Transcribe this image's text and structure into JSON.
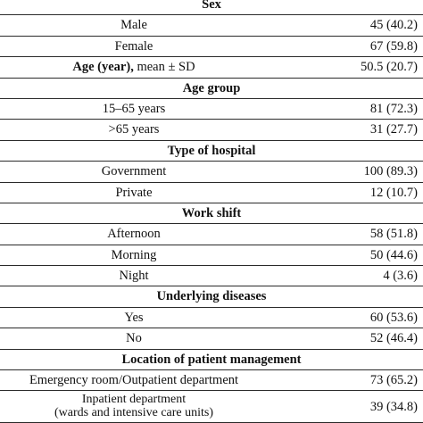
{
  "sections": {
    "sex": "Sex",
    "age_group": "Age group",
    "hospital": "Type of hospital",
    "shift": "Work shift",
    "diseases": "Underlying diseases",
    "location": "Location of patient management"
  },
  "rows": {
    "male": {
      "label": "Male",
      "value": "45 (40.2)"
    },
    "female": {
      "label": "Female",
      "value": "67 (59.8)"
    },
    "age": {
      "label_bold": "Age (year),",
      "label_rest": " mean ± SD",
      "value": "50.5 (20.7)"
    },
    "age1565": {
      "label": "15–65 years",
      "value": "81 (72.3)"
    },
    "age65": {
      "label": ">65 years",
      "value": "31 (27.7)"
    },
    "gov": {
      "label": "Government",
      "value": "100 (89.3)"
    },
    "private": {
      "label": "Private",
      "value": "12 (10.7)"
    },
    "afternoon": {
      "label": "Afternoon",
      "value": "58 (51.8)"
    },
    "morning": {
      "label": "Morning",
      "value": "50 (44.6)"
    },
    "night": {
      "label": "Night",
      "value": "4 (3.6)"
    },
    "yes": {
      "label": "Yes",
      "value": "60 (53.6)"
    },
    "no": {
      "label": "No",
      "value": "52 (46.4)"
    },
    "emergency": {
      "label": "Emergency room/Outpatient department",
      "value": "73 (65.2)"
    },
    "inpatient": {
      "label1": "Inpatient department",
      "label2": "(wards and intensive care units)",
      "value": "39 (34.8)"
    }
  }
}
